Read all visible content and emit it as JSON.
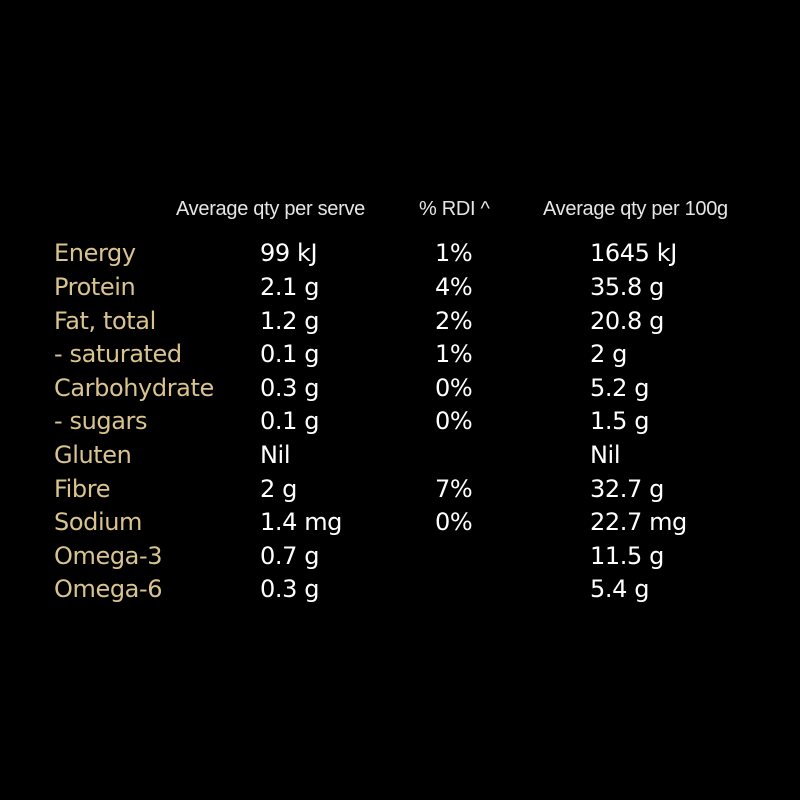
{
  "headers": {
    "per_serve": "Average qty per serve",
    "rdi": "% RDI ^",
    "per_100g": "Average qty per 100g"
  },
  "colors": {
    "background": "#000000",
    "nutrient_label": "#d9c48f",
    "value_text": "#ffffff",
    "header_text": "#e6e6e6"
  },
  "rows": [
    {
      "name": "Energy",
      "serve": "99 kJ",
      "rdi": "1%",
      "per100": "1645 kJ"
    },
    {
      "name": "Protein",
      "serve": "2.1 g",
      "rdi": "4%",
      "per100": "35.8 g"
    },
    {
      "name": "Fat, total",
      "serve": "1.2 g",
      "rdi": "2%",
      "per100": "20.8 g"
    },
    {
      "name": "- saturated",
      "serve": "0.1 g",
      "rdi": "1%",
      "per100": "2 g"
    },
    {
      "name": "Carbohydrate",
      "serve": "0.3 g",
      "rdi": "0%",
      "per100": "5.2 g"
    },
    {
      "name": "- sugars",
      "serve": "0.1 g",
      "rdi": "0%",
      "per100": "1.5 g"
    },
    {
      "name": "Gluten",
      "serve": "Nil",
      "rdi": "",
      "per100": "Nil"
    },
    {
      "name": "Fibre",
      "serve": "2 g",
      "rdi": "7%",
      "per100": "32.7 g"
    },
    {
      "name": "Sodium",
      "serve": "1.4 mg",
      "rdi": "0%",
      "per100": "22.7 mg"
    },
    {
      "name": "Omega-3",
      "serve": "0.7 g",
      "rdi": "",
      "per100": "11.5 g"
    },
    {
      "name": "Omega-6",
      "serve": "0.3 g",
      "rdi": "",
      "per100": "5.4 g"
    }
  ]
}
